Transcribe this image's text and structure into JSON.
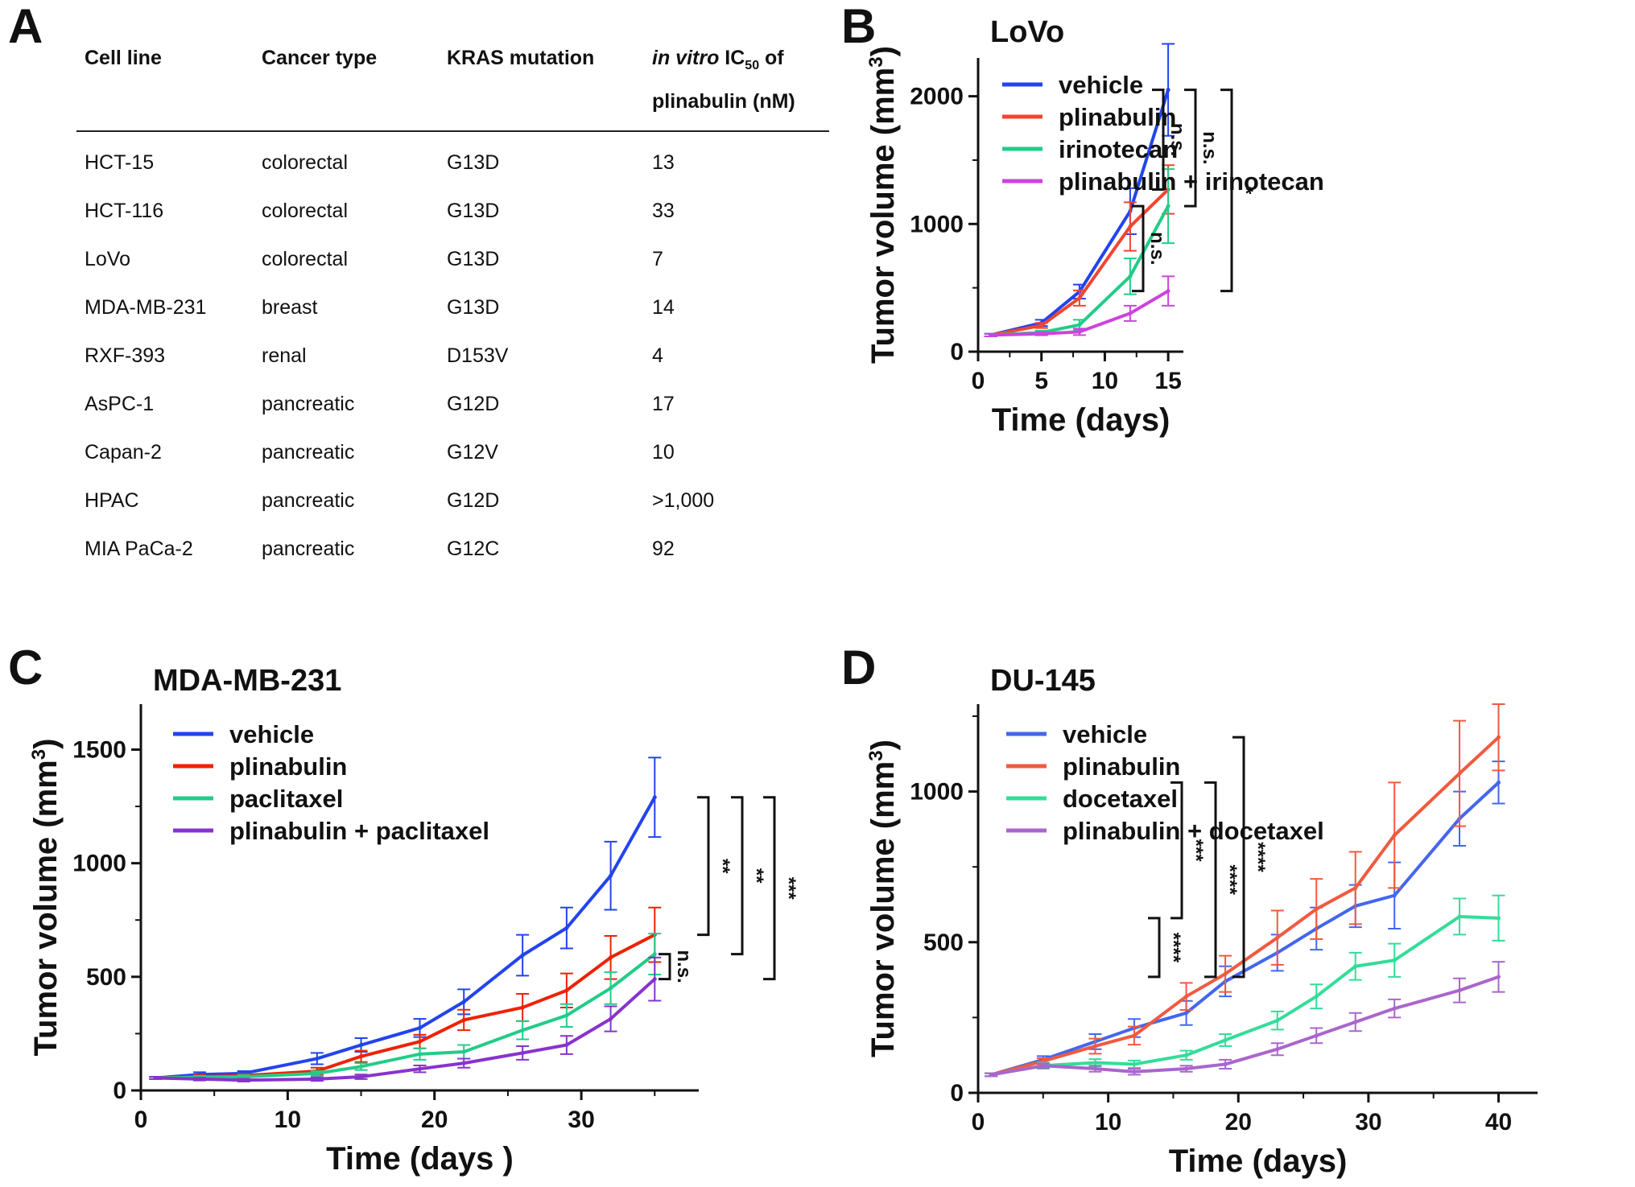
{
  "panel_labels": {
    "a": "A",
    "b": "B",
    "c": "C",
    "d": "D"
  },
  "table": {
    "headers": [
      "Cell line",
      "Cancer type",
      "KRAS mutation"
    ],
    "ic50_header": {
      "italic": "in vitro",
      "ic": "IC",
      "sub": "50",
      "of": " of",
      "line2": "plinabulin (nM)"
    },
    "rows": [
      [
        "HCT-15",
        "colorectal",
        "G13D",
        "13"
      ],
      [
        "HCT-116",
        "colorectal",
        "G13D",
        "33"
      ],
      [
        "LoVo",
        "colorectal",
        "G13D",
        "7"
      ],
      [
        "MDA-MB-231",
        "breast",
        "G13D",
        "14"
      ],
      [
        "RXF-393",
        "renal",
        "D153V",
        "4"
      ],
      [
        "AsPC-1",
        "pancreatic",
        "G12D",
        "17"
      ],
      [
        "Capan-2",
        "pancreatic",
        "G12V",
        "10"
      ],
      [
        "HPAC",
        "pancreatic",
        "G12D",
        ">1,000"
      ],
      [
        "MIA PaCa-2",
        "pancreatic",
        "G12C",
        "92"
      ]
    ]
  },
  "chart_data": [
    {
      "id": "B",
      "type": "line",
      "title": "LoVo",
      "xlabel": "Time (days)",
      "ylabel": "Tumor volume (mm",
      "ylabel_sup": "3",
      "ylabel_close": ")",
      "xlim": [
        0,
        16.2
      ],
      "ylim": [
        0,
        2300
      ],
      "xticks": [
        0,
        5,
        10,
        15
      ],
      "yticks": [
        0,
        1000,
        2000
      ],
      "series": [
        {
          "name": "vehicle",
          "color": "#2244ee",
          "x": [
            1,
            5,
            8,
            12,
            15
          ],
          "y": [
            130,
            225,
            470,
            1100,
            2050
          ],
          "err": [
            10,
            25,
            55,
            180,
            360
          ]
        },
        {
          "name": "plinabulin",
          "color": "#f04530",
          "x": [
            1,
            5,
            8,
            12,
            15
          ],
          "y": [
            130,
            205,
            420,
            980,
            1270
          ],
          "err": [
            10,
            20,
            60,
            190,
            190
          ]
        },
        {
          "name": "irinotecan",
          "color": "#22cc88",
          "x": [
            1,
            5,
            8,
            12,
            15
          ],
          "y": [
            130,
            150,
            210,
            590,
            1140
          ],
          "err": [
            10,
            15,
            40,
            140,
            290
          ]
        },
        {
          "name": "plinabulin + irinotecan",
          "color": "#cc44dd",
          "x": [
            1,
            5,
            8,
            12,
            15
          ],
          "y": [
            130,
            140,
            155,
            300,
            475
          ],
          "err": [
            10,
            12,
            25,
            60,
            115
          ]
        }
      ],
      "significance": [
        "n.s.",
        "n.s.",
        "*",
        "n.s."
      ]
    },
    {
      "id": "C",
      "type": "line",
      "title": "MDA-MB-231",
      "xlabel": "Time (days )",
      "ylabel": "Tumor volume (mm",
      "ylabel_sup": "3",
      "ylabel_close": ")",
      "xlim": [
        0,
        38
      ],
      "ylim": [
        0,
        1700
      ],
      "xticks": [
        0,
        10,
        20,
        30
      ],
      "yticks": [
        0,
        500,
        1000,
        1500
      ],
      "series": [
        {
          "name": "vehicle",
          "color": "#2244ee",
          "x": [
            1,
            4,
            7,
            12,
            15,
            19,
            22,
            26,
            29,
            32,
            35
          ],
          "y": [
            55,
            70,
            75,
            140,
            200,
            275,
            390,
            595,
            715,
            945,
            1290
          ],
          "err": [
            5,
            10,
            10,
            25,
            30,
            40,
            55,
            90,
            90,
            150,
            175
          ]
        },
        {
          "name": "plinabulin",
          "color": "#ee2200",
          "x": [
            1,
            4,
            7,
            12,
            15,
            19,
            22,
            26,
            29,
            32,
            35
          ],
          "y": [
            55,
            60,
            65,
            85,
            150,
            215,
            310,
            365,
            440,
            585,
            685
          ],
          "err": [
            5,
            8,
            8,
            15,
            25,
            30,
            45,
            60,
            75,
            95,
            120
          ]
        },
        {
          "name": "paclitaxel",
          "color": "#22cc88",
          "x": [
            1,
            4,
            7,
            12,
            15,
            19,
            22,
            26,
            29,
            32,
            35
          ],
          "y": [
            55,
            58,
            60,
            75,
            105,
            160,
            170,
            265,
            330,
            450,
            600
          ],
          "err": [
            5,
            6,
            8,
            10,
            15,
            25,
            30,
            40,
            50,
            70,
            90
          ]
        },
        {
          "name": "plinabulin + paclitaxel",
          "color": "#8833cc",
          "x": [
            1,
            4,
            7,
            12,
            15,
            19,
            22,
            26,
            29,
            32,
            35
          ],
          "y": [
            55,
            50,
            45,
            50,
            60,
            95,
            120,
            165,
            200,
            315,
            490
          ],
          "err": [
            5,
            6,
            6,
            8,
            10,
            15,
            20,
            30,
            40,
            55,
            95
          ]
        }
      ],
      "significance": [
        "**",
        "**",
        "***",
        "n.s."
      ]
    },
    {
      "id": "D",
      "type": "line",
      "title": "DU-145",
      "xlabel": "Time (days)",
      "ylabel": "Tumor volume (mm",
      "ylabel_sup": "3",
      "ylabel_close": ")",
      "xlim": [
        0,
        43
      ],
      "ylim": [
        0,
        1290
      ],
      "xticks": [
        0,
        10,
        20,
        30,
        40
      ],
      "yticks": [
        0,
        500,
        1000
      ],
      "series": [
        {
          "name": "vehicle",
          "color": "#4466ee",
          "x": [
            1,
            5,
            9,
            12,
            16,
            19,
            23,
            26,
            29,
            32,
            37,
            40
          ],
          "y": [
            60,
            110,
            170,
            215,
            265,
            370,
            465,
            545,
            620,
            655,
            910,
            1030
          ],
          "err": [
            5,
            12,
            25,
            30,
            40,
            50,
            60,
            70,
            70,
            110,
            90,
            70
          ]
        },
        {
          "name": "plinabulin",
          "color": "#f05a40",
          "x": [
            1,
            5,
            9,
            12,
            16,
            19,
            23,
            26,
            29,
            32,
            37,
            40
          ],
          "y": [
            60,
            105,
            155,
            190,
            320,
            395,
            515,
            610,
            680,
            855,
            1060,
            1180
          ],
          "err": [
            5,
            10,
            25,
            30,
            45,
            60,
            90,
            100,
            120,
            175,
            175,
            110
          ]
        },
        {
          "name": "docetaxel",
          "color": "#33dd99",
          "x": [
            1,
            5,
            9,
            12,
            16,
            19,
            23,
            26,
            29,
            32,
            37,
            40
          ],
          "y": [
            60,
            90,
            100,
            95,
            125,
            175,
            240,
            320,
            420,
            440,
            585,
            580
          ],
          "err": [
            5,
            10,
            12,
            12,
            15,
            20,
            30,
            40,
            45,
            55,
            60,
            75
          ]
        },
        {
          "name": "plinabulin + docetaxel",
          "color": "#aa66cc",
          "x": [
            1,
            5,
            9,
            12,
            16,
            19,
            23,
            26,
            29,
            32,
            37,
            40
          ],
          "y": [
            60,
            90,
            80,
            70,
            80,
            95,
            145,
            190,
            235,
            280,
            340,
            385
          ],
          "err": [
            5,
            8,
            10,
            10,
            10,
            15,
            20,
            25,
            30,
            30,
            40,
            50
          ]
        }
      ],
      "significance": [
        "***",
        "****",
        "****",
        "****"
      ]
    }
  ]
}
